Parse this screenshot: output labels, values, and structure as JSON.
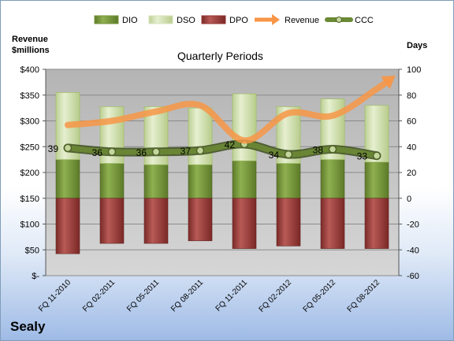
{
  "brand": "Sealy",
  "chart_data": {
    "type": "bar",
    "title": "Quarterly Periods",
    "ylabel_left": [
      "Revenue",
      "$millions"
    ],
    "ylabel_right": "Days",
    "categories": [
      "FQ 11-2010",
      "FQ 02-2011",
      "FQ 05-2011",
      "FQ 08-2011",
      "FQ 11-2011",
      "FQ 02-2012",
      "FQ 05-2012",
      "FQ 08-2012"
    ],
    "left_axis": {
      "ylim": [
        0,
        400
      ],
      "ticks": [
        "$-",
        "$50",
        "$100",
        "$150",
        "$200",
        "$250",
        "$300",
        "$350",
        "$400"
      ]
    },
    "right_axis": {
      "ylim": [
        -60,
        100
      ],
      "ticks": [
        "-60",
        "-40",
        "-20",
        "0",
        "20",
        "40",
        "60",
        "80",
        "100"
      ]
    },
    "legend": {
      "position": "top",
      "entries": [
        {
          "name": "DIO",
          "color": "#77933c"
        },
        {
          "name": "DSO",
          "color": "#d7e4bd"
        },
        {
          "name": "DPO",
          "color": "#953735"
        },
        {
          "name": "Revenue",
          "color": "#f79646"
        },
        {
          "name": "CCC",
          "color": "#4f6228"
        }
      ]
    },
    "series": [
      {
        "name": "DIO",
        "axis": "right",
        "type": "stacked-bar",
        "values": [
          30,
          27,
          26,
          26,
          29,
          27,
          30,
          28
        ]
      },
      {
        "name": "DSO",
        "axis": "right",
        "type": "stacked-bar",
        "values": [
          52,
          44,
          45,
          44,
          52,
          44,
          47,
          44
        ]
      },
      {
        "name": "DPO",
        "axis": "right",
        "type": "bar-negative",
        "values": [
          -43,
          -35,
          -35,
          -33,
          -39,
          -37,
          -39,
          -39
        ]
      },
      {
        "name": "Revenue",
        "axis": "left",
        "type": "line",
        "values": [
          292,
          300,
          318,
          330,
          262,
          315,
          310,
          362
        ]
      },
      {
        "name": "CCC",
        "axis": "right",
        "type": "line",
        "values": [
          39,
          36,
          36,
          37,
          42,
          34,
          38,
          33
        ],
        "data_labels": [
          "39",
          "36",
          "36",
          "37",
          "42",
          "34",
          "38",
          "33"
        ]
      }
    ],
    "plot_background": "#c0c0c0",
    "grid": true
  }
}
